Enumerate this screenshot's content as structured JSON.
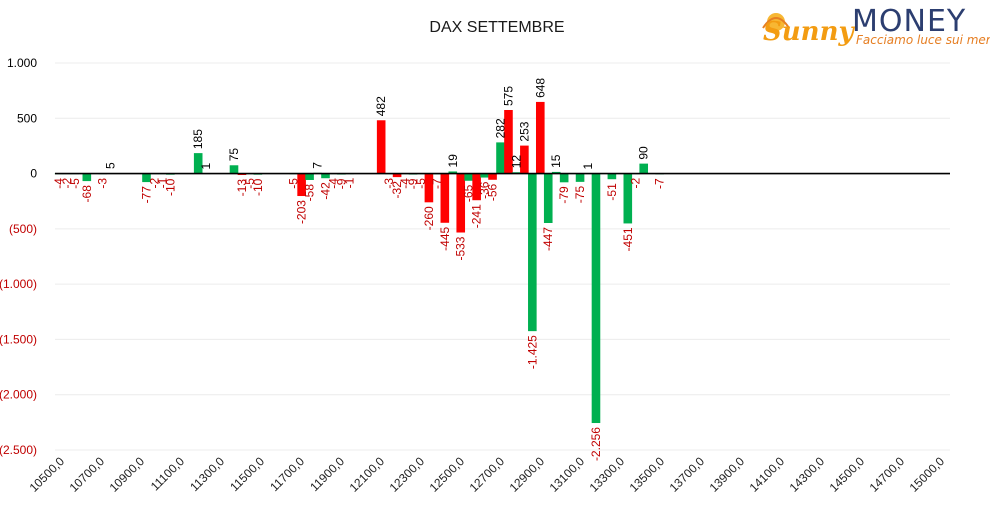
{
  "chart_data": {
    "type": "bar",
    "title": "DAX SETTEMBRE",
    "xlabel": "",
    "ylabel": "",
    "ylim": [
      -2500,
      1000
    ],
    "y_ticks": [
      {
        "value": 1000,
        "label": "1.000"
      },
      {
        "value": 500,
        "label": "500"
      },
      {
        "value": 0,
        "label": "0"
      },
      {
        "value": -500,
        "label": "(500)"
      },
      {
        "value": -1000,
        "label": "(1.000)"
      },
      {
        "value": -1500,
        "label": "(1.500)"
      },
      {
        "value": -2000,
        "label": "(2.000)"
      },
      {
        "value": -2500,
        "label": "(2.500)"
      }
    ],
    "x_ticks": [
      "10500,0",
      "10700,0",
      "10900,0",
      "11100,0",
      "11300,0",
      "11500,0",
      "11700,0",
      "11900,0",
      "12100,0",
      "12300,0",
      "12500,0",
      "12700,0",
      "12900,0",
      "13100,0",
      "13300,0",
      "13500,0",
      "13700,0",
      "13900,0",
      "14100,0",
      "14300,0",
      "14500,0",
      "14700,0",
      "15000,0"
    ],
    "grid": "horizontal",
    "colors": {
      "green": "#00b050",
      "red": "#ff0000",
      "neg_label": "#c00000",
      "pos_label": "#000000"
    },
    "series": [
      {
        "values": [
          {
            "x": 10520,
            "y": -4,
            "label": "-4",
            "color": "green"
          },
          {
            "x": 10560,
            "y": -2,
            "label": "-2",
            "color": "green"
          },
          {
            "x": 10600,
            "y": -5,
            "label": "-5",
            "color": "green"
          },
          {
            "x": 10660,
            "y": -68,
            "label": "-68",
            "color": "green"
          },
          {
            "x": 10740,
            "y": -3,
            "label": "-3",
            "color": "green"
          },
          {
            "x": 10780,
            "y": 5,
            "label": "5",
            "color": "green"
          },
          {
            "x": 10960,
            "y": -77,
            "label": "-77",
            "color": "green"
          },
          {
            "x": 11000,
            "y": -2,
            "label": "-2",
            "color": "green"
          },
          {
            "x": 11040,
            "y": -1,
            "label": "-1",
            "color": "green"
          },
          {
            "x": 11080,
            "y": -10,
            "label": "-10",
            "color": "green"
          },
          {
            "x": 11220,
            "y": 185,
            "label": "185",
            "color": "green"
          },
          {
            "x": 11260,
            "y": 1,
            "label": "1",
            "color": "green"
          },
          {
            "x": 11400,
            "y": 75,
            "label": "75",
            "color": "green"
          },
          {
            "x": 11440,
            "y": -13,
            "label": "-13",
            "color": "red"
          },
          {
            "x": 11480,
            "y": -5,
            "label": "-5",
            "color": "green"
          },
          {
            "x": 11520,
            "y": -10,
            "label": "-10",
            "color": "green"
          },
          {
            "x": 11700,
            "y": -5,
            "label": "-5",
            "color": "green"
          },
          {
            "x": 11740,
            "y": -203,
            "label": "-203",
            "color": "red"
          },
          {
            "x": 11780,
            "y": -58,
            "label": "-58",
            "color": "green"
          },
          {
            "x": 11820,
            "y": 7,
            "label": "7",
            "color": "green"
          },
          {
            "x": 11860,
            "y": -42,
            "label": "-42",
            "color": "green"
          },
          {
            "x": 11900,
            "y": -4,
            "label": "-4",
            "color": "green"
          },
          {
            "x": 11940,
            "y": -9,
            "label": "-9",
            "color": "green"
          },
          {
            "x": 11980,
            "y": -1,
            "label": "-1",
            "color": "green"
          },
          {
            "x": 12140,
            "y": 482,
            "label": "482",
            "color": "red"
          },
          {
            "x": 12180,
            "y": -3,
            "label": "-3",
            "color": "green"
          },
          {
            "x": 12220,
            "y": -32,
            "label": "-32",
            "color": "red"
          },
          {
            "x": 12260,
            "y": -4,
            "label": "-4",
            "color": "green"
          },
          {
            "x": 12300,
            "y": -9,
            "label": "-9",
            "color": "green"
          },
          {
            "x": 12340,
            "y": -5,
            "label": "-5",
            "color": "green"
          },
          {
            "x": 12380,
            "y": -260,
            "label": "-260",
            "color": "red"
          },
          {
            "x": 12420,
            "y": -7,
            "label": "-7",
            "color": "green"
          },
          {
            "x": 12460,
            "y": -445,
            "label": "-445",
            "color": "red"
          },
          {
            "x": 12500,
            "y": 19,
            "label": "19",
            "color": "green"
          },
          {
            "x": 12540,
            "y": -533,
            "label": "-533",
            "color": "red"
          },
          {
            "x": 12580,
            "y": -65,
            "label": "-65",
            "color": "green"
          },
          {
            "x": 12620,
            "y": -241,
            "label": "-241",
            "color": "red"
          },
          {
            "x": 12660,
            "y": -36,
            "label": "-36",
            "color": "green"
          },
          {
            "x": 12700,
            "y": -56,
            "label": "-56",
            "color": "red"
          },
          {
            "x": 12740,
            "y": 282,
            "label": "282",
            "color": "green"
          },
          {
            "x": 12780,
            "y": 575,
            "label": "575",
            "color": "red"
          },
          {
            "x": 12820,
            "y": 12,
            "label": "12",
            "color": "green"
          },
          {
            "x": 12860,
            "y": 253,
            "label": "253",
            "color": "red"
          },
          {
            "x": 12900,
            "y": -1425,
            "label": "-1.425",
            "color": "green"
          },
          {
            "x": 12940,
            "y": 648,
            "label": "648",
            "color": "red"
          },
          {
            "x": 12980,
            "y": -447,
            "label": "-447",
            "color": "green"
          },
          {
            "x": 13020,
            "y": 15,
            "label": "15",
            "color": "green"
          },
          {
            "x": 13060,
            "y": -79,
            "label": "-79",
            "color": "green"
          },
          {
            "x": 13140,
            "y": -75,
            "label": "-75",
            "color": "green"
          },
          {
            "x": 13180,
            "y": 1,
            "label": "1",
            "color": "green"
          },
          {
            "x": 13220,
            "y": -2256,
            "label": "-2.256",
            "color": "green"
          },
          {
            "x": 13300,
            "y": -51,
            "label": "-51",
            "color": "green"
          },
          {
            "x": 13380,
            "y": -451,
            "label": "-451",
            "color": "green"
          },
          {
            "x": 13420,
            "y": -2,
            "label": "-2",
            "color": "green"
          },
          {
            "x": 13460,
            "y": 90,
            "label": "90",
            "color": "green"
          },
          {
            "x": 13540,
            "y": -7,
            "label": "-7",
            "color": "green"
          }
        ]
      }
    ]
  },
  "logo": {
    "brand_part1": "Sunny",
    "brand_part2": "MONEY",
    "tagline": "Facciamo luce sui mercati",
    "colors": {
      "sun": "#f39c12",
      "money": "#2c3e70",
      "tagline": "#e67e22"
    }
  }
}
